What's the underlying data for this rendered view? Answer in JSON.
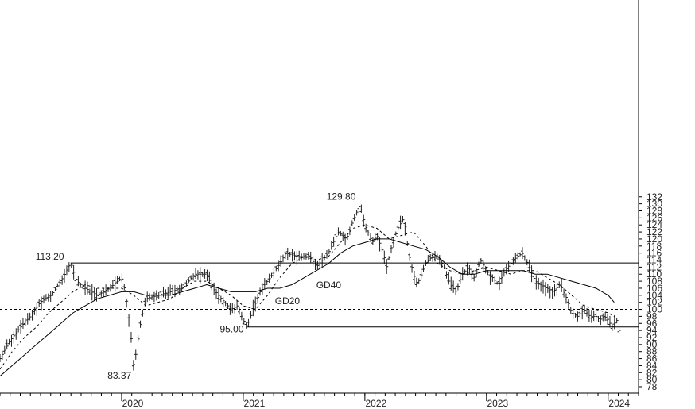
{
  "chart_data": {
    "type": "line",
    "title": "",
    "xlabel": "",
    "ylabel": "",
    "ylim": [
      77,
      132
    ],
    "xlim": [
      2019.0,
      2024.25
    ],
    "y_ticks": [
      78,
      80,
      82,
      84,
      86,
      88,
      90,
      92,
      94,
      96,
      98,
      100,
      102,
      104,
      106,
      108,
      110,
      112,
      114,
      116,
      118,
      120,
      122,
      124,
      126,
      128,
      130,
      132
    ],
    "x_ticks": [
      {
        "label": "2020",
        "x": 2020.0
      },
      {
        "label": "2021",
        "x": 2021.0
      },
      {
        "label": "2022",
        "x": 2022.0
      },
      {
        "label": "2023",
        "x": 2023.0
      },
      {
        "label": "2024",
        "x": 2024.0
      }
    ],
    "reference_lines": [
      {
        "value": 113.2,
        "style": "solid",
        "from": 2019.58,
        "to": 2024.25
      },
      {
        "value": 95.0,
        "style": "solid",
        "from": 2021.03,
        "to": 2024.25
      },
      {
        "value": 100.0,
        "style": "dashed",
        "from": 2019.0,
        "to": 2024.25
      }
    ],
    "annotations": [
      {
        "text": "113.20",
        "x": 2019.58,
        "y": 113.2
      },
      {
        "text": "129.80",
        "x": 2021.96,
        "y": 129.8
      },
      {
        "text": "83.37",
        "x": 2020.1,
        "y": 83.37
      },
      {
        "text": "95.00",
        "x": 2021.03,
        "y": 95.0
      },
      {
        "text": "GD40",
        "x": 2021.6,
        "y": 106.0
      },
      {
        "text": "GD20",
        "x": 2021.26,
        "y": 101.5
      }
    ],
    "price_path": [
      [
        2019.0,
        86
      ],
      [
        2019.08,
        91
      ],
      [
        2019.17,
        95
      ],
      [
        2019.25,
        98
      ],
      [
        2019.33,
        102
      ],
      [
        2019.42,
        104
      ],
      [
        2019.5,
        108
      ],
      [
        2019.58,
        113.2
      ],
      [
        2019.63,
        108
      ],
      [
        2019.7,
        106
      ],
      [
        2019.8,
        104
      ],
      [
        2019.9,
        106
      ],
      [
        2020.0,
        109
      ],
      [
        2020.03,
        105
      ],
      [
        2020.07,
        95
      ],
      [
        2020.1,
        83.37
      ],
      [
        2020.15,
        95
      ],
      [
        2020.2,
        103
      ],
      [
        2020.3,
        104
      ],
      [
        2020.4,
        105
      ],
      [
        2020.5,
        106
      ],
      [
        2020.6,
        110
      ],
      [
        2020.7,
        110
      ],
      [
        2020.75,
        106
      ],
      [
        2020.82,
        103
      ],
      [
        2020.9,
        100
      ],
      [
        2020.95,
        101
      ],
      [
        2021.0,
        97
      ],
      [
        2021.03,
        95.0
      ],
      [
        2021.08,
        100
      ],
      [
        2021.15,
        106
      ],
      [
        2021.22,
        109
      ],
      [
        2021.3,
        113
      ],
      [
        2021.35,
        116
      ],
      [
        2021.45,
        115
      ],
      [
        2021.55,
        115
      ],
      [
        2021.6,
        112
      ],
      [
        2021.7,
        116
      ],
      [
        2021.78,
        122
      ],
      [
        2021.85,
        120
      ],
      [
        2021.9,
        125
      ],
      [
        2021.96,
        129.8
      ],
      [
        2022.0,
        124
      ],
      [
        2022.06,
        119
      ],
      [
        2022.1,
        121
      ],
      [
        2022.15,
        116
      ],
      [
        2022.18,
        112
      ],
      [
        2022.22,
        118
      ],
      [
        2022.27,
        123
      ],
      [
        2022.32,
        126
      ],
      [
        2022.36,
        116
      ],
      [
        2022.4,
        110
      ],
      [
        2022.43,
        107
      ],
      [
        2022.5,
        113
      ],
      [
        2022.55,
        115
      ],
      [
        2022.6,
        115
      ],
      [
        2022.65,
        112
      ],
      [
        2022.7,
        107
      ],
      [
        2022.75,
        105
      ],
      [
        2022.8,
        110
      ],
      [
        2022.85,
        112
      ],
      [
        2022.9,
        109
      ],
      [
        2022.95,
        114
      ],
      [
        2023.0,
        111
      ],
      [
        2023.05,
        109
      ],
      [
        2023.1,
        107
      ],
      [
        2023.15,
        111
      ],
      [
        2023.2,
        113
      ],
      [
        2023.25,
        115
      ],
      [
        2023.3,
        116
      ],
      [
        2023.35,
        112
      ],
      [
        2023.4,
        108
      ],
      [
        2023.45,
        107
      ],
      [
        2023.5,
        106
      ],
      [
        2023.55,
        105
      ],
      [
        2023.6,
        107
      ],
      [
        2023.62,
        106
      ],
      [
        2023.66,
        103
      ],
      [
        2023.7,
        99
      ],
      [
        2023.75,
        98
      ],
      [
        2023.8,
        100
      ],
      [
        2023.85,
        98
      ],
      [
        2023.9,
        98
      ],
      [
        2023.93,
        97
      ],
      [
        2023.97,
        98
      ],
      [
        2024.0,
        97
      ],
      [
        2024.03,
        95
      ],
      [
        2024.07,
        97
      ],
      [
        2024.09,
        94
      ]
    ],
    "series": [
      {
        "name": "GD20",
        "style": "dashed",
        "x": [
          2019.0,
          2019.1,
          2019.2,
          2019.3,
          2019.4,
          2019.5,
          2019.6,
          2019.7,
          2019.8,
          2019.9,
          2020.0,
          2020.1,
          2020.2,
          2020.3,
          2020.4,
          2020.5,
          2020.6,
          2020.7,
          2020.8,
          2020.9,
          2021.0,
          2021.1,
          2021.2,
          2021.3,
          2021.4,
          2021.5,
          2021.6,
          2021.7,
          2021.8,
          2021.9,
          2022.0,
          2022.1,
          2022.2,
          2022.3,
          2022.4,
          2022.5,
          2022.6,
          2022.7,
          2022.8,
          2022.9,
          2023.0,
          2023.1,
          2023.2,
          2023.3,
          2023.4,
          2023.5,
          2023.6,
          2023.7,
          2023.8,
          2023.9,
          2024.0,
          2024.05
        ],
        "values": [
          83,
          88,
          92,
          95,
          99,
          102,
          105,
          107,
          106,
          106,
          106,
          104,
          101,
          102,
          103,
          106,
          108,
          108,
          106,
          104,
          101,
          100,
          104,
          109,
          113,
          115,
          114,
          115,
          119,
          123,
          124,
          123,
          120,
          121,
          122,
          118,
          113,
          111,
          110,
          111,
          112,
          111,
          110,
          111,
          111,
          109,
          107,
          104,
          101,
          100,
          99,
          98
        ]
      },
      {
        "name": "GD40",
        "style": "solid",
        "x": [
          2019.0,
          2019.1,
          2019.2,
          2019.3,
          2019.4,
          2019.5,
          2019.6,
          2019.7,
          2019.8,
          2019.9,
          2020.0,
          2020.1,
          2020.2,
          2020.3,
          2020.4,
          2020.5,
          2020.6,
          2020.7,
          2020.8,
          2020.9,
          2021.0,
          2021.1,
          2021.2,
          2021.3,
          2021.4,
          2021.5,
          2021.6,
          2021.7,
          2021.8,
          2021.9,
          2022.0,
          2022.1,
          2022.2,
          2022.3,
          2022.4,
          2022.5,
          2022.6,
          2022.7,
          2022.8,
          2022.9,
          2023.0,
          2023.1,
          2023.2,
          2023.3,
          2023.4,
          2023.5,
          2023.6,
          2023.7,
          2023.8,
          2023.9,
          2024.0,
          2024.05
        ],
        "values": [
          81,
          84,
          87,
          90,
          93,
          96,
          99,
          101,
          103,
          104,
          105,
          105,
          104,
          104,
          104,
          105,
          106,
          107,
          106,
          105,
          105,
          105,
          106,
          106,
          107,
          109,
          111,
          113,
          116,
          118,
          119,
          120,
          120,
          119,
          118,
          117,
          115,
          112,
          110,
          110,
          111,
          111,
          111,
          111,
          110,
          110,
          109,
          108,
          107,
          106,
          104,
          102
        ]
      }
    ]
  }
}
